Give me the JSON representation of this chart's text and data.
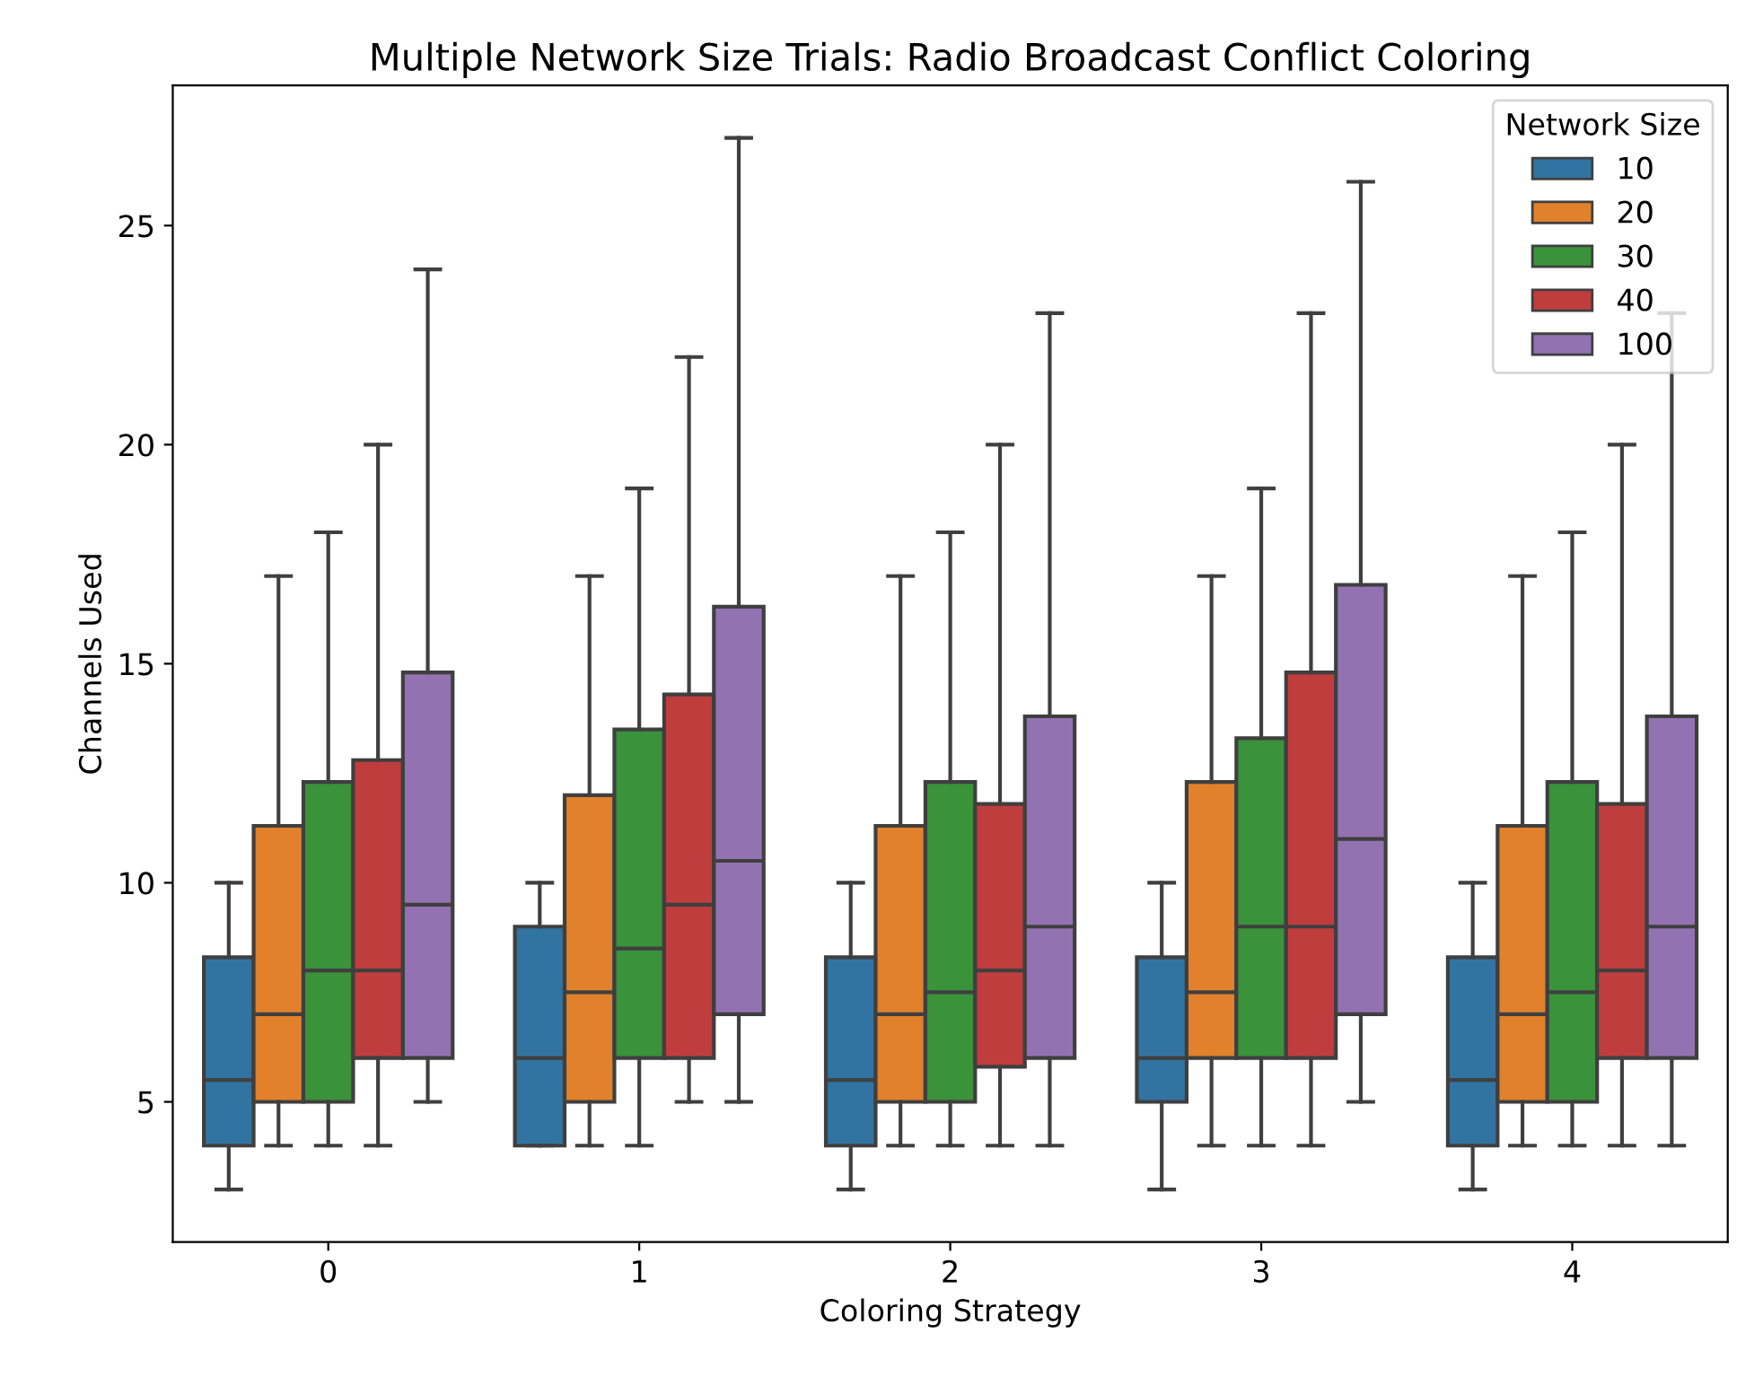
{
  "chart_data": {
    "type": "box",
    "title": "Multiple Network Size Trials: Radio Broadcast Conflict Coloring",
    "xlabel": "Coloring Strategy",
    "ylabel": "Channels Used",
    "legend_title": "Network Size",
    "legend": "top right",
    "grid": false,
    "categories": [
      "0",
      "1",
      "2",
      "3",
      "4"
    ],
    "ylim": [
      1.8,
      28.2
    ],
    "yticks": [
      5,
      10,
      15,
      20,
      25
    ],
    "series": [
      {
        "name": "10",
        "color": "#3274a1",
        "boxes": [
          {
            "low": 3,
            "q1": 4,
            "median": 5.5,
            "q3": 8.3,
            "high": 10
          },
          {
            "low": 4,
            "q1": 4,
            "median": 6,
            "q3": 9,
            "high": 10
          },
          {
            "low": 3,
            "q1": 4,
            "median": 5.5,
            "q3": 8.3,
            "high": 10
          },
          {
            "low": 3,
            "q1": 5,
            "median": 6,
            "q3": 8.3,
            "high": 10
          },
          {
            "low": 3,
            "q1": 4,
            "median": 5.5,
            "q3": 8.3,
            "high": 10
          }
        ]
      },
      {
        "name": "20",
        "color": "#e1812c",
        "boxes": [
          {
            "low": 4,
            "q1": 5,
            "median": 7,
            "q3": 11.3,
            "high": 17
          },
          {
            "low": 4,
            "q1": 5,
            "median": 7.5,
            "q3": 12,
            "high": 17
          },
          {
            "low": 4,
            "q1": 5,
            "median": 7,
            "q3": 11.3,
            "high": 17
          },
          {
            "low": 4,
            "q1": 6,
            "median": 7.5,
            "q3": 12.3,
            "high": 17
          },
          {
            "low": 4,
            "q1": 5,
            "median": 7,
            "q3": 11.3,
            "high": 17
          }
        ]
      },
      {
        "name": "30",
        "color": "#3a923a",
        "boxes": [
          {
            "low": 4,
            "q1": 5,
            "median": 8,
            "q3": 12.3,
            "high": 18
          },
          {
            "low": 4,
            "q1": 6,
            "median": 8.5,
            "q3": 13.5,
            "high": 19
          },
          {
            "low": 4,
            "q1": 5,
            "median": 7.5,
            "q3": 12.3,
            "high": 18
          },
          {
            "low": 4,
            "q1": 6,
            "median": 9,
            "q3": 13.3,
            "high": 19
          },
          {
            "low": 4,
            "q1": 5,
            "median": 7.5,
            "q3": 12.3,
            "high": 18
          }
        ]
      },
      {
        "name": "40",
        "color": "#c03d3e",
        "boxes": [
          {
            "low": 4,
            "q1": 6,
            "median": 8,
            "q3": 12.8,
            "high": 20
          },
          {
            "low": 5,
            "q1": 6,
            "median": 9.5,
            "q3": 14.3,
            "high": 22
          },
          {
            "low": 4,
            "q1": 5.8,
            "median": 8,
            "q3": 11.8,
            "high": 20
          },
          {
            "low": 4,
            "q1": 6,
            "median": 9,
            "q3": 14.8,
            "high": 23
          },
          {
            "low": 4,
            "q1": 6,
            "median": 8,
            "q3": 11.8,
            "high": 20
          }
        ]
      },
      {
        "name": "100",
        "color": "#9372b2",
        "boxes": [
          {
            "low": 5,
            "q1": 6,
            "median": 9.5,
            "q3": 14.8,
            "high": 24
          },
          {
            "low": 5,
            "q1": 7,
            "median": 10.5,
            "q3": 16.3,
            "high": 27
          },
          {
            "low": 4,
            "q1": 6,
            "median": 9,
            "q3": 13.8,
            "high": 23
          },
          {
            "low": 5,
            "q1": 7,
            "median": 11,
            "q3": 16.8,
            "high": 26
          },
          {
            "low": 4,
            "q1": 6,
            "median": 9,
            "q3": 13.8,
            "high": 23
          }
        ]
      }
    ]
  }
}
